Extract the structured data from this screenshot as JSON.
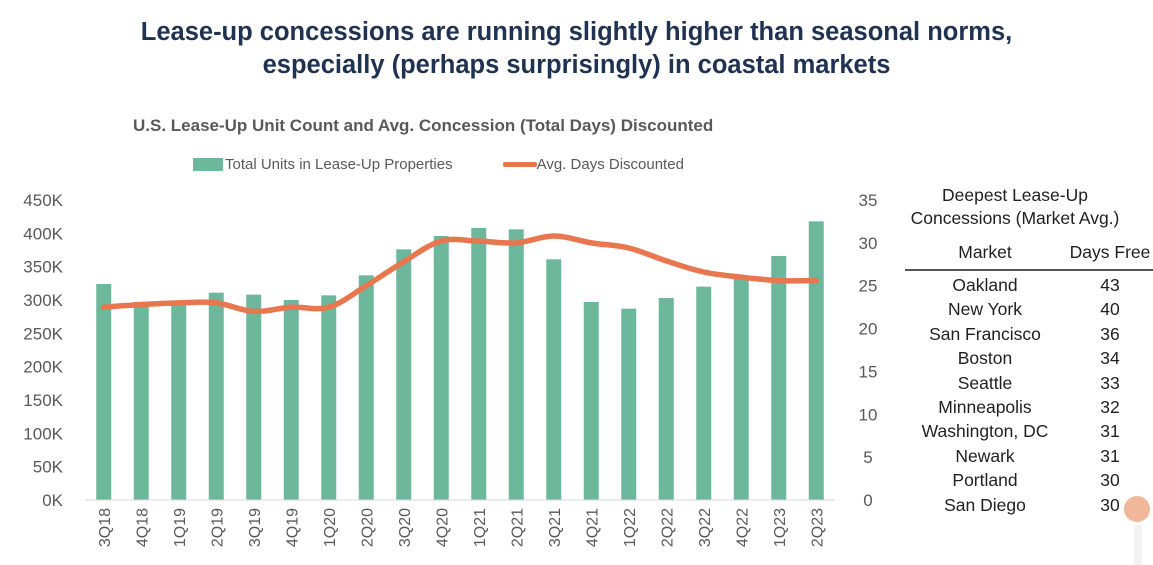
{
  "headline": {
    "line1": "Lease-up concessions are running slightly higher than seasonal norms,",
    "line2": "especially (perhaps surprisingly) in coastal markets"
  },
  "colors": {
    "bar": "#6db89c",
    "line": "#e8764e",
    "headline": "#1f3251",
    "axis_text": "#595959"
  },
  "chart_data": {
    "type": "bar",
    "title": "U.S. Lease-Up Unit Count and Avg. Concession (Total Days) Discounted",
    "legend": {
      "placement": "top",
      "entries": [
        "Total Units in Lease-Up Properties",
        "Avg. Days Discounted"
      ]
    },
    "categories": [
      "3Q18",
      "4Q18",
      "1Q19",
      "2Q19",
      "3Q19",
      "4Q19",
      "1Q20",
      "2Q20",
      "3Q20",
      "4Q20",
      "1Q21",
      "2Q21",
      "3Q21",
      "4Q21",
      "1Q22",
      "2Q22",
      "3Q22",
      "4Q22",
      "1Q23",
      "2Q23"
    ],
    "series": [
      {
        "name": "Total Units in Lease-Up Properties",
        "type": "bar",
        "axis": "left",
        "values": [
          324000,
          297000,
          296000,
          311000,
          308000,
          300000,
          307000,
          337000,
          376000,
          396000,
          408000,
          406000,
          361000,
          297000,
          287000,
          303000,
          320000,
          333000,
          366000,
          418000
        ]
      },
      {
        "name": "Avg. Days Discounted",
        "type": "line",
        "axis": "right",
        "values": [
          22.5,
          22.8,
          23.0,
          23.0,
          22.0,
          22.5,
          22.5,
          25.0,
          27.8,
          30.2,
          30.2,
          30.0,
          30.8,
          30.0,
          29.4,
          27.9,
          26.6,
          26.0,
          25.6,
          25.6
        ]
      }
    ],
    "y_left": {
      "range": [
        0,
        450000
      ],
      "ticks": [
        0,
        50000,
        100000,
        150000,
        200000,
        250000,
        300000,
        350000,
        400000,
        450000
      ],
      "tick_labels": [
        "0K",
        "50K",
        "100K",
        "150K",
        "200K",
        "250K",
        "300K",
        "350K",
        "400K",
        "450K"
      ]
    },
    "y_right": {
      "range": [
        0,
        35
      ],
      "ticks": [
        0,
        5,
        10,
        15,
        20,
        25,
        30,
        35
      ],
      "tick_labels": [
        "0",
        "5",
        "10",
        "15",
        "20",
        "25",
        "30",
        "35"
      ]
    },
    "xlabel": "",
    "ylabel": "",
    "grid": false
  },
  "table": {
    "title_line1": "Deepest Lease-Up",
    "title_line2": "Concessions (Market Avg.)",
    "headers": [
      "Market",
      "Days Free"
    ],
    "rows": [
      {
        "market": "Oakland",
        "days": "43"
      },
      {
        "market": "New York",
        "days": "40"
      },
      {
        "market": "San Francisco",
        "days": "36"
      },
      {
        "market": "Boston",
        "days": "34"
      },
      {
        "market": "Seattle",
        "days": "33"
      },
      {
        "market": "Minneapolis",
        "days": "32"
      },
      {
        "market": "Washington, DC",
        "days": "31"
      },
      {
        "market": "Newark",
        "days": "31"
      },
      {
        "market": "Portland",
        "days": "30"
      },
      {
        "market": "San Diego",
        "days": "30"
      }
    ]
  }
}
